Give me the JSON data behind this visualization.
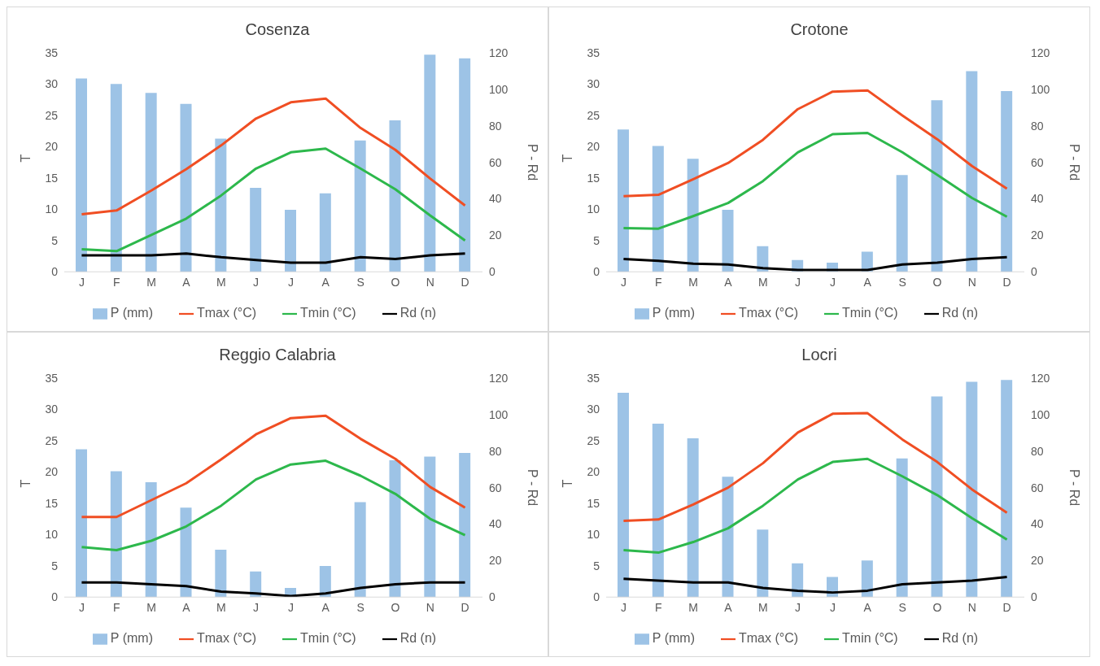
{
  "chart_data": [
    {
      "type": "bar",
      "title": "Cosenza",
      "categories": [
        "J",
        "F",
        "M",
        "A",
        "M",
        "J",
        "J",
        "A",
        "S",
        "O",
        "N",
        "D"
      ],
      "ylabel": "T",
      "y2label": "P - Rd",
      "ylim": [
        0,
        35
      ],
      "yticks": [
        0,
        5,
        10,
        15,
        20,
        25,
        30,
        35
      ],
      "y2lim": [
        0,
        120
      ],
      "y2ticks": [
        0,
        20,
        40,
        60,
        80,
        100,
        120
      ],
      "legend": "bottom",
      "marker": "none",
      "series": [
        {
          "name": "P  (mm)",
          "axis": "y2",
          "color": "#9dc3e6",
          "values": [
            106,
            103,
            98,
            92,
            73,
            46,
            34,
            43,
            72,
            83,
            119,
            117
          ]
        },
        {
          "name": "Tmax (°C)",
          "type": "line",
          "color": "#f04e23",
          "values": [
            9.2,
            9.8,
            13,
            16.4,
            20.2,
            24.5,
            27.1,
            27.7,
            23,
            19.5,
            14.9,
            10.6
          ]
        },
        {
          "name": "Tmin (°C)",
          "type": "line",
          "color": "#2db84c",
          "values": [
            3.6,
            3.3,
            5.9,
            8.5,
            12.2,
            16.5,
            19.1,
            19.7,
            16.5,
            13.2,
            9,
            5
          ]
        },
        {
          "name": "Rd (n)",
          "type": "line",
          "axis": "y2",
          "color": "#000000",
          "values": [
            9,
            9,
            9,
            10,
            8,
            6.5,
            5,
            5,
            8,
            7,
            9,
            10
          ]
        }
      ]
    },
    {
      "type": "bar",
      "title": "Crotone",
      "categories": [
        "J",
        "F",
        "M",
        "A",
        "M",
        "J",
        "J",
        "A",
        "S",
        "O",
        "N",
        "D"
      ],
      "ylabel": "T",
      "y2label": "P - Rd",
      "ylim": [
        0,
        35
      ],
      "yticks": [
        0,
        5,
        10,
        15,
        20,
        25,
        30,
        35
      ],
      "y2lim": [
        0,
        120
      ],
      "y2ticks": [
        0,
        20,
        40,
        60,
        80,
        100,
        120
      ],
      "legend": "bottom",
      "marker": "none",
      "series": [
        {
          "name": "P  (mm)",
          "axis": "y2",
          "color": "#9dc3e6",
          "values": [
            78,
            69,
            62,
            34,
            14,
            6.5,
            5,
            11,
            53,
            94,
            110,
            99
          ]
        },
        {
          "name": "Tmax (°C)",
          "type": "line",
          "color": "#f04e23",
          "values": [
            12.1,
            12.3,
            14.8,
            17.4,
            21.1,
            26,
            28.8,
            29,
            25,
            21.2,
            16.9,
            13.3
          ]
        },
        {
          "name": "Tmin (°C)",
          "type": "line",
          "color": "#2db84c",
          "values": [
            7,
            6.9,
            8.9,
            11,
            14.5,
            19.1,
            22,
            22.2,
            19.1,
            15.5,
            11.8,
            8.8
          ]
        },
        {
          "name": "Rd (n)",
          "type": "line",
          "axis": "y2",
          "color": "#000000",
          "values": [
            7,
            6,
            4.5,
            4,
            2,
            1,
            1,
            1,
            4,
            5,
            7,
            8
          ]
        }
      ]
    },
    {
      "type": "bar",
      "title": "Reggio Calabria",
      "categories": [
        "J",
        "F",
        "M",
        "A",
        "M",
        "J",
        "J",
        "A",
        "S",
        "O",
        "N",
        "D"
      ],
      "ylabel": "T",
      "y2label": "P - Rd",
      "ylim": [
        0,
        35
      ],
      "yticks": [
        0,
        5,
        10,
        15,
        20,
        25,
        30,
        35
      ],
      "y2lim": [
        0,
        120
      ],
      "y2ticks": [
        0,
        20,
        40,
        60,
        80,
        100,
        120
      ],
      "legend": "bottom",
      "marker": "none",
      "series": [
        {
          "name": "P  (mm)",
          "axis": "y2",
          "color": "#9dc3e6",
          "values": [
            81,
            69,
            63,
            49,
            26,
            14,
            5,
            17,
            52,
            75,
            77,
            79
          ]
        },
        {
          "name": "Tmax (°C)",
          "type": "line",
          "color": "#f04e23",
          "values": [
            12.8,
            12.8,
            15.5,
            18.2,
            22,
            26,
            28.6,
            29,
            25.3,
            22.1,
            17.6,
            14.3
          ]
        },
        {
          "name": "Tmin (°C)",
          "type": "line",
          "color": "#2db84c",
          "values": [
            8,
            7.5,
            9,
            11.3,
            14.6,
            18.8,
            21.2,
            21.8,
            19.4,
            16.5,
            12.5,
            9.9
          ]
        },
        {
          "name": "Rd (n)",
          "type": "line",
          "axis": "y2",
          "color": "#000000",
          "values": [
            8,
            8,
            7,
            6,
            3,
            2,
            0.5,
            2,
            5,
            7,
            8,
            8
          ]
        }
      ]
    },
    {
      "type": "bar",
      "title": "Locri",
      "categories": [
        "J",
        "F",
        "M",
        "A",
        "M",
        "J",
        "J",
        "A",
        "S",
        "O",
        "N",
        "D"
      ],
      "ylabel": "T",
      "y2label": "P - Rd",
      "ylim": [
        0,
        35
      ],
      "yticks": [
        0,
        5,
        10,
        15,
        20,
        25,
        30,
        35
      ],
      "y2lim": [
        0,
        120
      ],
      "y2ticks": [
        0,
        20,
        40,
        60,
        80,
        100,
        120
      ],
      "legend": "bottom",
      "marker": "none",
      "series": [
        {
          "name": "P (mm)",
          "axis": "y2",
          "color": "#9dc3e6",
          "values": [
            112,
            95,
            87,
            66,
            37,
            18.5,
            11,
            20,
            76,
            110,
            118,
            119
          ]
        },
        {
          "name": "Tmax (°C)",
          "type": "line",
          "color": "#f04e23",
          "values": [
            12.2,
            12.4,
            14.8,
            17.5,
            21.4,
            26.3,
            29.3,
            29.4,
            25.2,
            21.6,
            17.2,
            13.5
          ]
        },
        {
          "name": "Tmin (°C)",
          "type": "line",
          "color": "#2db84c",
          "values": [
            7.5,
            7.1,
            8.8,
            11,
            14.6,
            18.8,
            21.6,
            22.1,
            19.3,
            16.3,
            12.6,
            9.2
          ]
        },
        {
          "name": "Rd (n)",
          "type": "line",
          "axis": "y2",
          "color": "#000000",
          "values": [
            10,
            9,
            8,
            8,
            5,
            3.5,
            2.5,
            3.5,
            7,
            8,
            9,
            11
          ]
        }
      ]
    }
  ]
}
